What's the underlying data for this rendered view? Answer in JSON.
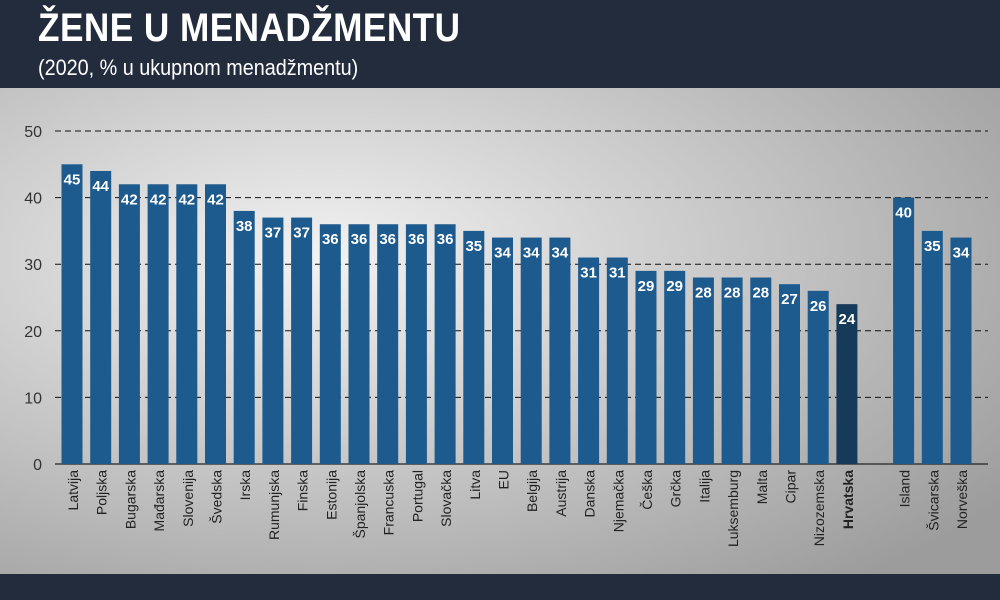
{
  "header": {
    "title": "ŽENE U MENADŽMENTU",
    "subtitle": "(2020, % u ukupnom menadžmentu)"
  },
  "colors": {
    "bar": "#1d5a8e",
    "highlight_bar": "#163a5a",
    "header_bg": "#232c3d",
    "plot_bg_light": "#f2f2f2",
    "plot_bg_dark": "#9c9c9c"
  },
  "chart_data": {
    "type": "bar",
    "categories": [
      "Latvija",
      "Poljska",
      "Bugarska",
      "Mađarska",
      "Slovenija",
      "Švedska",
      "Irska",
      "Rumunjska",
      "Finska",
      "Estonija",
      "Španjolska",
      "Francuska",
      "Portugal",
      "Slovačka",
      "Litva",
      "EU",
      "Belgija",
      "Austrija",
      "Danska",
      "Njemačka",
      "Češka",
      "Grčka",
      "Italija",
      "Luksemburg",
      "Malta",
      "Cipar",
      "Nizozemska",
      "Hrvatska",
      "Island",
      "Švicarska",
      "Norveška"
    ],
    "values": [
      45,
      44,
      42,
      42,
      42,
      42,
      38,
      37,
      37,
      36,
      36,
      36,
      36,
      36,
      35,
      34,
      34,
      34,
      31,
      31,
      29,
      29,
      28,
      28,
      28,
      27,
      26,
      24,
      40,
      35,
      34
    ],
    "highlight": "Hrvatska",
    "group_break_after": "Hrvatska",
    "ylim": [
      0,
      50
    ],
    "yticks": [
      0,
      10,
      20,
      30,
      40,
      50
    ],
    "grid": true,
    "xlabel": "",
    "ylabel": ""
  }
}
